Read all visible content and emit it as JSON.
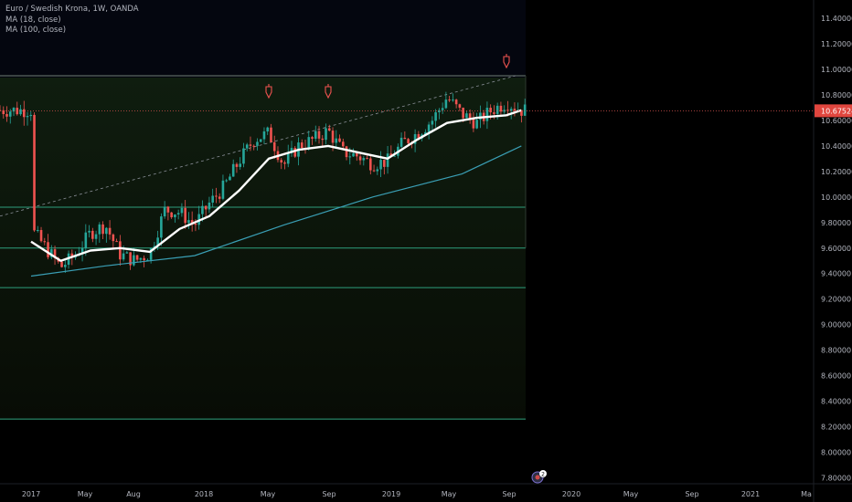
{
  "legend": {
    "title": "Euro / Swedish Krona, 1W, OANDA",
    "ma18": "MA (18, close)",
    "ma100": "MA (100, close)"
  },
  "price_label": "10.67524",
  "badge_count": "2",
  "colors": {
    "background": "#000000",
    "up_candle": "#26a69a",
    "down_candle": "#ef5350",
    "ma18": "#ffffff",
    "ma100": "#3a9fb5",
    "horizontal_lines": "#2e9e7c",
    "price_line": "#d9534f",
    "axis_text": "#b2b5be"
  },
  "chart_data": {
    "type": "candlestick",
    "y_range": [
      7.76,
      11.5
    ],
    "y_ticks": [
      "11.40000",
      "11.20000",
      "11.00000",
      "10.80000",
      "10.60000",
      "10.40000",
      "10.20000",
      "10.00000",
      "9.80000",
      "9.60000",
      "9.40000",
      "9.20000",
      "9.00000",
      "8.80000",
      "8.60000",
      "8.40000",
      "8.20000",
      "8.00000",
      "7.80000"
    ],
    "x_ticks": [
      "2017",
      "May",
      "Aug",
      "2018",
      "May",
      "Sep",
      "2019",
      "May",
      "Sep",
      "2020",
      "May",
      "Sep",
      "2021",
      "Ma"
    ],
    "horizontal_levels": [
      10.95,
      9.92,
      9.6,
      9.29,
      8.26
    ],
    "current_price": 10.67524,
    "trend_line": {
      "from": [
        "2017-01",
        9.85
      ],
      "to": [
        "2019-09",
        10.95
      ]
    },
    "sell_signal_markers": [
      "2018-05",
      "2018-09",
      "2019-09"
    ],
    "weekly_close_path": [
      [
        "2017-01",
        9.75
      ],
      [
        "2017-02",
        9.6
      ],
      [
        "2017-03",
        9.45
      ],
      [
        "2017-04",
        9.55
      ],
      [
        "2017-05",
        9.72
      ],
      [
        "2017-06",
        9.78
      ],
      [
        "2017-07",
        9.55
      ],
      [
        "2017-08",
        9.5
      ],
      [
        "2017-09",
        9.56
      ],
      [
        "2017-10",
        9.9
      ],
      [
        "2017-11",
        9.88
      ],
      [
        "2017-12",
        9.78
      ],
      [
        "2018-01",
        9.95
      ],
      [
        "2018-02",
        10.08
      ],
      [
        "2018-03",
        10.28
      ],
      [
        "2018-04",
        10.45
      ],
      [
        "2018-05",
        10.5
      ],
      [
        "2018-06",
        10.25
      ],
      [
        "2018-07",
        10.4
      ],
      [
        "2018-08",
        10.45
      ],
      [
        "2018-09",
        10.52
      ],
      [
        "2018-10",
        10.35
      ],
      [
        "2018-11",
        10.32
      ],
      [
        "2018-12",
        10.26
      ],
      [
        "2019-01",
        10.28
      ],
      [
        "2019-02",
        10.42
      ],
      [
        "2019-03",
        10.5
      ],
      [
        "2019-04",
        10.6
      ],
      [
        "2019-05",
        10.78
      ],
      [
        "2019-06",
        10.65
      ],
      [
        "2019-07",
        10.58
      ],
      [
        "2019-08",
        10.68
      ],
      [
        "2019-09",
        10.74
      ],
      [
        "2019-10",
        10.68
      ]
    ],
    "ma18_path": [
      [
        "2017-01",
        9.65
      ],
      [
        "2017-03",
        9.5
      ],
      [
        "2017-05",
        9.58
      ],
      [
        "2017-07",
        9.6
      ],
      [
        "2017-09",
        9.57
      ],
      [
        "2017-11",
        9.75
      ],
      [
        "2018-01",
        9.85
      ],
      [
        "2018-03",
        10.05
      ],
      [
        "2018-05",
        10.3
      ],
      [
        "2018-07",
        10.37
      ],
      [
        "2018-09",
        10.4
      ],
      [
        "2018-11",
        10.35
      ],
      [
        "2019-01",
        10.3
      ],
      [
        "2019-03",
        10.45
      ],
      [
        "2019-05",
        10.58
      ],
      [
        "2019-07",
        10.62
      ],
      [
        "2019-09",
        10.64
      ],
      [
        "2019-10",
        10.68
      ]
    ],
    "ma100_path": [
      [
        "2017-01",
        9.38
      ],
      [
        "2017-06",
        9.46
      ],
      [
        "2017-12",
        9.54
      ],
      [
        "2018-06",
        9.78
      ],
      [
        "2018-12",
        10.0
      ],
      [
        "2019-06",
        10.18
      ],
      [
        "2019-10",
        10.4
      ]
    ]
  }
}
